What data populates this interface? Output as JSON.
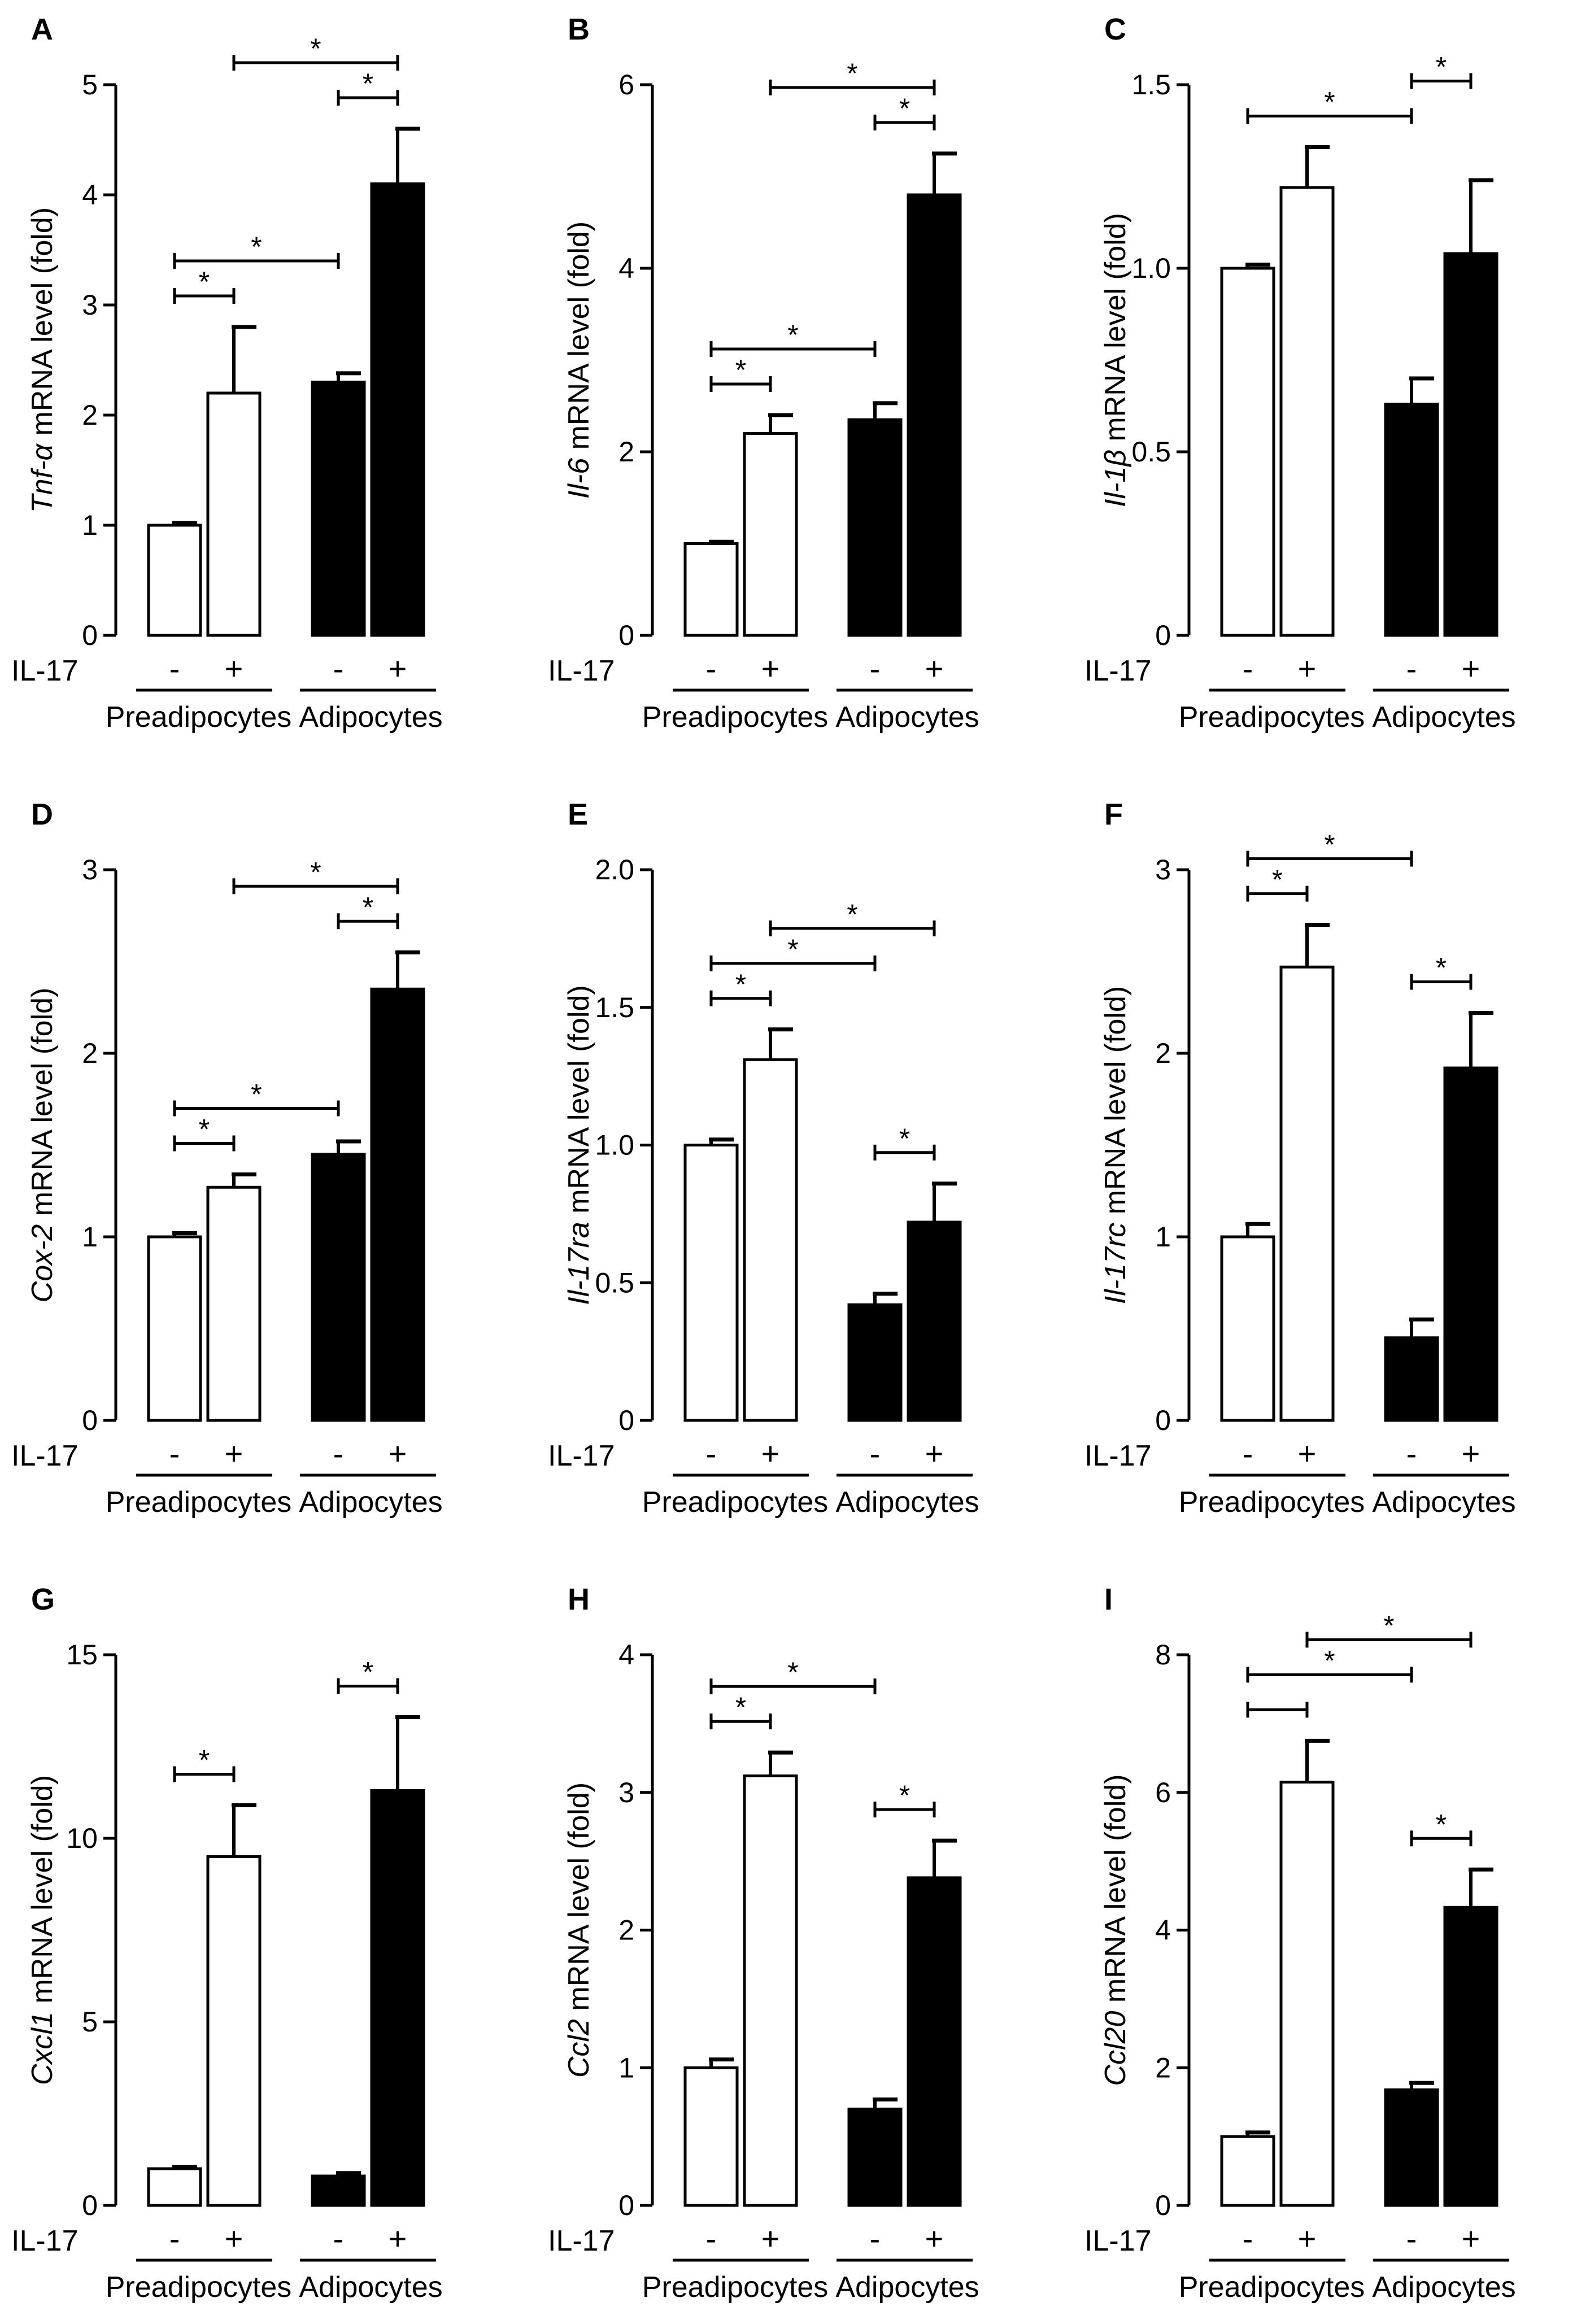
{
  "figure": {
    "treatment_label": "IL-17",
    "minus": "-",
    "plus": "+",
    "groups": [
      "Preadipocytes",
      "Adipocytes"
    ],
    "significance_marker": "*",
    "colors": {
      "preadipocytes_fill": "#ffffff",
      "adipocytes_fill": "#000000",
      "stroke": "#000000"
    }
  },
  "chart_data": [
    {
      "panel": "A",
      "type": "bar",
      "ylabel_gene": "Tnf-α",
      "ylabel_rest": " mRNA level (fold)",
      "ylim": [
        0,
        5
      ],
      "yticks": [
        "0",
        "1",
        "2",
        "3",
        "4",
        "5"
      ],
      "values": [
        1.0,
        2.2,
        2.3,
        4.1
      ],
      "errors": [
        0.02,
        0.6,
        0.08,
        0.5
      ],
      "significance": [
        {
          "from": 0,
          "to": 1,
          "label": "*"
        },
        {
          "from": 0,
          "to": 2,
          "label": "*"
        },
        {
          "from": 2,
          "to": 3,
          "label": "*"
        },
        {
          "from": 1,
          "to": 3,
          "label": "*"
        }
      ]
    },
    {
      "panel": "B",
      "type": "bar",
      "ylabel_gene": "Il-6",
      "ylabel_rest": " mRNA level (fold)",
      "ylim": [
        0,
        6
      ],
      "yticks": [
        "0",
        "2",
        "4",
        "6"
      ],
      "values": [
        1.0,
        2.2,
        2.35,
        4.8
      ],
      "errors": [
        0.02,
        0.2,
        0.18,
        0.45
      ],
      "significance": [
        {
          "from": 0,
          "to": 1,
          "label": "*"
        },
        {
          "from": 0,
          "to": 2,
          "label": "*"
        },
        {
          "from": 2,
          "to": 3,
          "label": "*"
        },
        {
          "from": 1,
          "to": 3,
          "label": "*"
        }
      ]
    },
    {
      "panel": "C",
      "type": "bar",
      "ylabel_gene": "Il-1β",
      "ylabel_rest": " mRNA level (fold)",
      "ylim": [
        0,
        1.5
      ],
      "yticks": [
        "0",
        "0.5",
        "1.0",
        "1.5"
      ],
      "values": [
        1.0,
        1.22,
        0.63,
        1.04
      ],
      "errors": [
        0.01,
        0.11,
        0.07,
        0.2
      ],
      "significance": [
        {
          "from": 0,
          "to": 2,
          "label": "*"
        },
        {
          "from": 2,
          "to": 3,
          "label": "*"
        }
      ]
    },
    {
      "panel": "D",
      "type": "bar",
      "ylabel_gene": "Cox-2",
      "ylabel_rest": " mRNA level (fold)",
      "ylim": [
        0,
        3
      ],
      "yticks": [
        "0",
        "1",
        "2",
        "3"
      ],
      "values": [
        1.0,
        1.27,
        1.45,
        2.35
      ],
      "errors": [
        0.02,
        0.07,
        0.07,
        0.2
      ],
      "significance": [
        {
          "from": 0,
          "to": 1,
          "label": "*"
        },
        {
          "from": 0,
          "to": 2,
          "label": "*"
        },
        {
          "from": 2,
          "to": 3,
          "label": "*"
        },
        {
          "from": 1,
          "to": 3,
          "label": "*"
        }
      ]
    },
    {
      "panel": "E",
      "type": "bar",
      "ylabel_gene": "Il-17ra",
      "ylabel_rest": " mRNA level (fold)",
      "ylim": [
        0,
        2.0
      ],
      "yticks": [
        "0",
        "0.5",
        "1.0",
        "1.5",
        "2.0"
      ],
      "values": [
        1.0,
        1.31,
        0.42,
        0.72
      ],
      "errors": [
        0.02,
        0.11,
        0.04,
        0.14
      ],
      "significance": [
        {
          "from": 0,
          "to": 1,
          "label": "*"
        },
        {
          "from": 0,
          "to": 2,
          "label": "*"
        },
        {
          "from": 2,
          "to": 3,
          "label": "*"
        },
        {
          "from": 1,
          "to": 3,
          "label": "*"
        }
      ]
    },
    {
      "panel": "F",
      "type": "bar",
      "ylabel_gene": "Il-17rc",
      "ylabel_rest": " mRNA level (fold)",
      "ylim": [
        0,
        3
      ],
      "yticks": [
        "0",
        "1",
        "2",
        "3"
      ],
      "values": [
        1.0,
        2.47,
        0.45,
        1.92
      ],
      "errors": [
        0.07,
        0.23,
        0.1,
        0.3
      ],
      "significance": [
        {
          "from": 0,
          "to": 1,
          "label": "*"
        },
        {
          "from": 0,
          "to": 2,
          "label": "*"
        },
        {
          "from": 2,
          "to": 3,
          "label": "*"
        }
      ]
    },
    {
      "panel": "G",
      "type": "bar",
      "ylabel_gene": "Cxcl1",
      "ylabel_rest": " mRNA level (fold)",
      "ylim": [
        0,
        15
      ],
      "yticks": [
        "0",
        "5",
        "10",
        "15"
      ],
      "values": [
        1.0,
        9.5,
        0.8,
        11.3
      ],
      "errors": [
        0.05,
        1.4,
        0.08,
        2.0
      ],
      "significance": [
        {
          "from": 0,
          "to": 1,
          "label": "*"
        },
        {
          "from": 2,
          "to": 3,
          "label": "*"
        }
      ]
    },
    {
      "panel": "H",
      "type": "bar",
      "ylabel_gene": "Ccl2",
      "ylabel_rest": " mRNA level (fold)",
      "ylim": [
        0,
        4
      ],
      "yticks": [
        "0",
        "1",
        "2",
        "3",
        "4"
      ],
      "values": [
        1.0,
        3.12,
        0.7,
        2.38
      ],
      "errors": [
        0.06,
        0.17,
        0.07,
        0.27
      ],
      "significance": [
        {
          "from": 0,
          "to": 1,
          "label": "*"
        },
        {
          "from": 0,
          "to": 2,
          "label": "*"
        },
        {
          "from": 2,
          "to": 3,
          "label": "*"
        }
      ]
    },
    {
      "panel": "I",
      "type": "bar",
      "ylabel_gene": "Ccl20",
      "ylabel_rest": " mRNA level (fold)",
      "ylim": [
        0,
        8
      ],
      "yticks": [
        "0",
        "2",
        "4",
        "6",
        "8"
      ],
      "values": [
        1.0,
        6.15,
        1.68,
        4.33
      ],
      "errors": [
        0.06,
        0.6,
        0.1,
        0.55
      ],
      "significance": [
        {
          "from": 0,
          "to": 1,
          "label": ""
        },
        {
          "from": 0,
          "to": 2,
          "label": "*"
        },
        {
          "from": 2,
          "to": 3,
          "label": "*"
        },
        {
          "from": 1,
          "to": 3,
          "label": "*"
        }
      ]
    }
  ]
}
